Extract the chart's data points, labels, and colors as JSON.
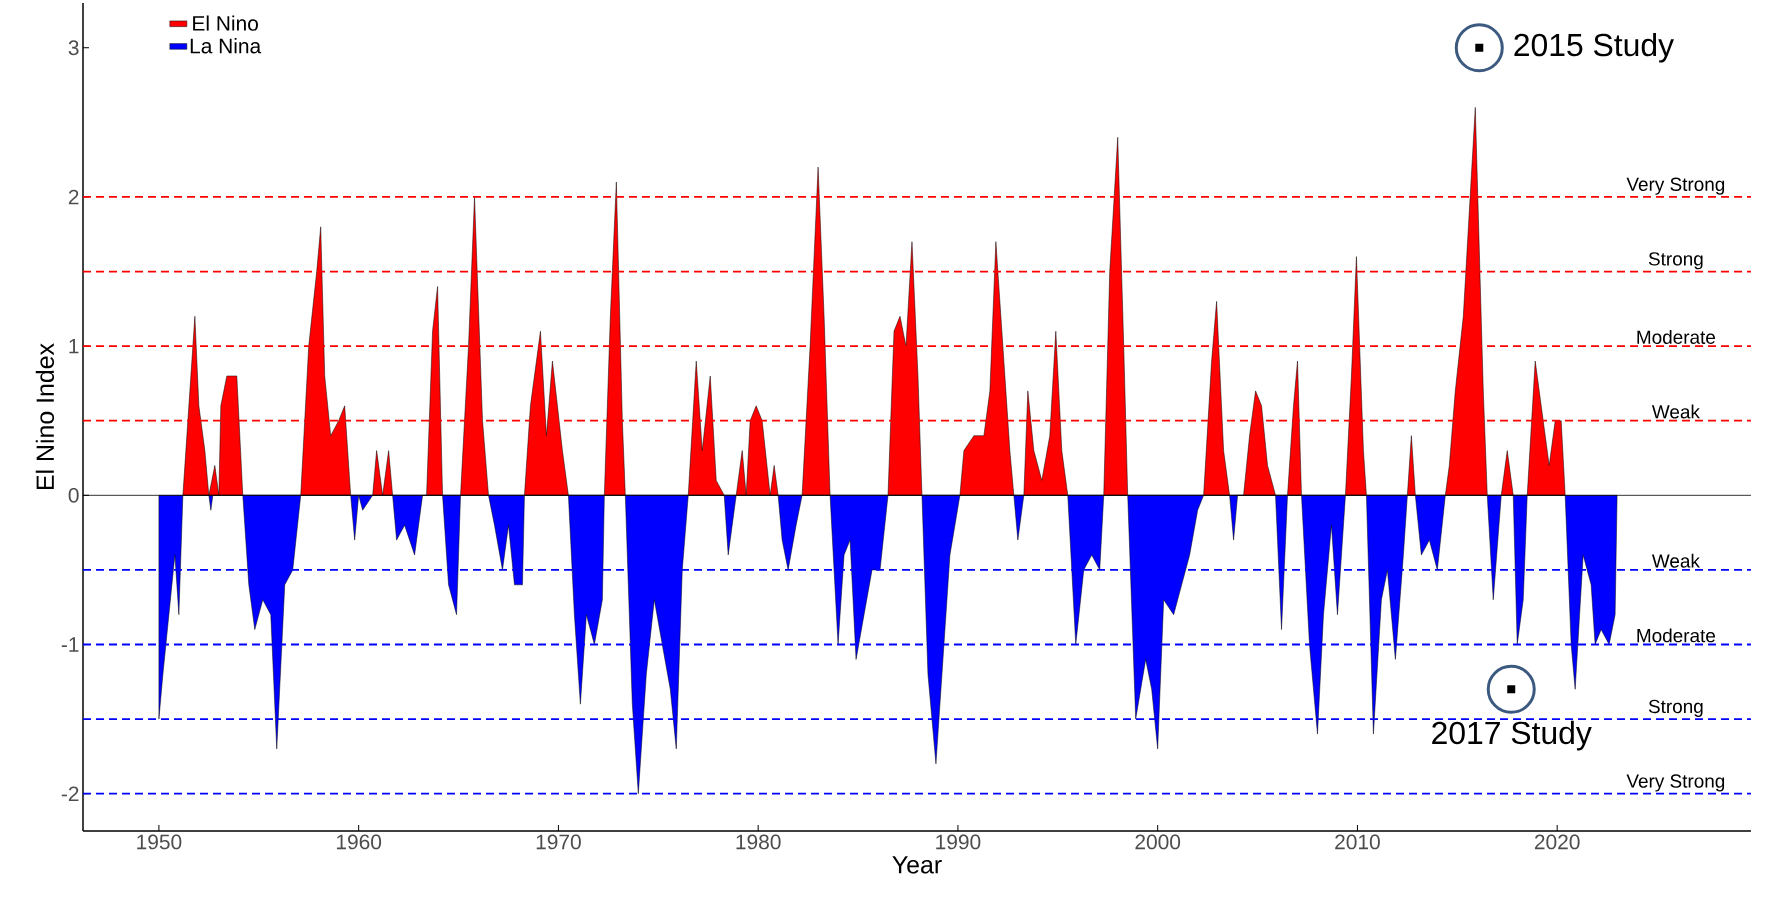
{
  "chart_data": {
    "type": "area",
    "xlabel": "Year",
    "ylabel": "El Nino Index",
    "xlim": [
      1946.2,
      2029.7
    ],
    "ylim": [
      -2.25,
      3.3
    ],
    "xticks": [
      1950,
      1960,
      1970,
      1980,
      1990,
      2000,
      2010,
      2020
    ],
    "yticks": [
      -2,
      -1,
      0,
      1,
      2,
      3
    ],
    "legend": "top left",
    "series": [
      {
        "name": "El Nino",
        "color": "#ff0000",
        "x": [
          1951.2,
          1951.6,
          1951.8,
          1952.0,
          1952.3,
          1952.5,
          1952.8,
          1953.0,
          1953.1,
          1953.4,
          1953.9,
          1954.2,
          1957.1,
          1957.5,
          1957.9,
          1958.1,
          1958.3,
          1958.6,
          1959.0,
          1959.3,
          1959.6,
          1960.7,
          1960.9,
          1961.2,
          1961.5,
          1961.7,
          1963.4,
          1963.7,
          1963.95,
          1964.2,
          1965.1,
          1965.5,
          1965.8,
          1966.2,
          1966.5,
          1968.3,
          1968.6,
          1969.1,
          1969.4,
          1969.7,
          1970.2,
          1970.5,
          1972.3,
          1972.6,
          1972.9,
          1973.2,
          1973.35,
          1976.5,
          1976.9,
          1977.2,
          1977.6,
          1977.9,
          1978.3,
          1978.9,
          1979.2,
          1979.4,
          1979.6,
          1979.9,
          1980.2,
          1980.6,
          1980.8,
          1981.0,
          1982.2,
          1982.6,
          1983.0,
          1983.3,
          1983.6,
          1986.5,
          1986.8,
          1987.1,
          1987.4,
          1987.7,
          1988.0,
          1988.2,
          1990.1,
          1990.3,
          1990.8,
          1991.3,
          1991.6,
          1991.9,
          1992.2,
          1992.6,
          1992.8,
          1993.3,
          1993.5,
          1993.8,
          1994.2,
          1994.6,
          1994.9,
          1995.2,
          1995.5,
          1997.3,
          1997.6,
          1998.0,
          1998.3,
          1998.5,
          2002.3,
          2002.7,
          2002.95,
          2003.3,
          2003.6,
          2004.3,
          2004.6,
          2004.9,
          2005.2,
          2005.5,
          2005.9,
          2006.5,
          2006.8,
          2007.0,
          2007.2,
          2009.4,
          2009.7,
          2009.95,
          2010.3,
          2010.45,
          2012.5,
          2012.7,
          2012.9,
          2014.4,
          2014.6,
          2014.9,
          2015.3,
          2015.9,
          2016.3,
          2016.5,
          2017.2,
          2017.5,
          2017.8,
          2018.5,
          2018.9,
          2019.3,
          2019.6,
          2019.9,
          2020.2,
          2020.4
        ],
        "values": [
          0,
          0.8,
          1.2,
          0.6,
          0.3,
          0,
          0.2,
          0,
          0.6,
          0.8,
          0.8,
          0,
          0,
          1.0,
          1.5,
          1.8,
          0.8,
          0.4,
          0.5,
          0.6,
          0,
          0,
          0.3,
          0,
          0.3,
          0,
          0,
          1.1,
          1.4,
          0,
          0,
          1.0,
          2.0,
          0.5,
          0,
          0,
          0.6,
          1.1,
          0.4,
          0.9,
          0.3,
          0,
          0,
          1.2,
          2.1,
          0.5,
          0,
          0,
          0.9,
          0.3,
          0.8,
          0.1,
          0,
          0,
          0.3,
          0,
          0.5,
          0.6,
          0.5,
          0,
          0.2,
          0,
          0,
          1.0,
          2.2,
          1.2,
          0,
          0,
          1.1,
          1.2,
          1.0,
          1.7,
          0.8,
          0,
          0,
          0.3,
          0.4,
          0.4,
          0.7,
          1.7,
          1.1,
          0.3,
          0,
          0,
          0.7,
          0.3,
          0.1,
          0.4,
          1.1,
          0.3,
          0,
          0,
          1.5,
          2.4,
          1.0,
          0,
          0,
          0.9,
          1.3,
          0.3,
          0,
          0,
          0.4,
          0.7,
          0.6,
          0.2,
          0,
          0,
          0.6,
          0.9,
          0,
          0,
          0.8,
          1.6,
          0.3,
          0,
          0,
          0.4,
          0,
          0,
          0.2,
          0.7,
          1.2,
          2.6,
          0.7,
          0,
          0,
          0.3,
          0,
          0,
          0.9,
          0.5,
          0.2,
          0.5,
          0.5,
          0
        ]
      },
      {
        "name": "La Nina",
        "color": "#0000ff",
        "x": [
          1950.0,
          1950.2,
          1950.5,
          1950.8,
          1951.0,
          1951.2,
          1952.5,
          1952.6,
          1952.7,
          1954.2,
          1954.5,
          1954.8,
          1955.2,
          1955.6,
          1955.9,
          1956.3,
          1956.7,
          1957.1,
          1959.6,
          1959.8,
          1960.0,
          1960.2,
          1960.7,
          1961.7,
          1961.9,
          1962.3,
          1962.8,
          1963.2,
          1964.2,
          1964.5,
          1964.9,
          1965.1,
          1966.5,
          1966.8,
          1967.2,
          1967.5,
          1967.8,
          1968.2,
          1968.3,
          1970.5,
          1970.8,
          1971.1,
          1971.4,
          1971.8,
          1972.2,
          1972.3,
          1973.35,
          1973.7,
          1974.0,
          1974.4,
          1974.8,
          1975.2,
          1975.6,
          1975.9,
          1976.2,
          1976.5,
          1978.3,
          1978.5,
          1978.9,
          1981.0,
          1981.2,
          1981.5,
          1981.9,
          1982.2,
          1983.6,
          1983.8,
          1984.0,
          1984.3,
          1984.6,
          1984.9,
          1985.3,
          1985.7,
          1986.1,
          1986.5,
          1988.2,
          1988.5,
          1988.9,
          1989.2,
          1989.6,
          1990.1,
          1992.8,
          1993.0,
          1993.3,
          1995.5,
          1995.9,
          1996.3,
          1996.7,
          1997.1,
          1997.3,
          1998.5,
          1998.9,
          1999.4,
          1999.7,
          2000.0,
          2000.3,
          2000.8,
          2001.2,
          2001.6,
          2002.0,
          2002.3,
          2003.6,
          2003.8,
          2004.0,
          2005.9,
          2006.2,
          2006.5,
          2007.2,
          2007.6,
          2008.0,
          2008.3,
          2008.7,
          2009.0,
          2009.4,
          2010.45,
          2010.8,
          2011.2,
          2011.5,
          2011.9,
          2012.3,
          2012.5,
          2012.9,
          2013.2,
          2013.6,
          2014.0,
          2014.4,
          2016.5,
          2016.8,
          2017.2,
          2017.8,
          2018.0,
          2018.3,
          2018.5,
          2020.4,
          2020.7,
          2020.9,
          2021.3,
          2021.7,
          2021.9,
          2022.2,
          2022.6,
          2022.9,
          2023.0
        ],
        "values": [
          -1.5,
          -1.2,
          -0.8,
          -0.4,
          -0.8,
          0,
          0,
          -0.1,
          0,
          0,
          -0.6,
          -0.9,
          -0.7,
          -0.8,
          -1.7,
          -0.6,
          -0.5,
          0,
          0,
          -0.3,
          0,
          -0.1,
          0,
          0,
          -0.3,
          -0.2,
          -0.4,
          0,
          0,
          -0.6,
          -0.8,
          0,
          0,
          -0.2,
          -0.5,
          -0.2,
          -0.6,
          -0.6,
          0,
          0,
          -0.8,
          -1.4,
          -0.8,
          -1.0,
          -0.7,
          0,
          0,
          -1.4,
          -2.0,
          -1.2,
          -0.7,
          -1.0,
          -1.3,
          -1.7,
          -0.5,
          0,
          0,
          -0.4,
          0,
          0,
          -0.3,
          -0.5,
          -0.2,
          0,
          0,
          -0.5,
          -1.0,
          -0.4,
          -0.3,
          -1.1,
          -0.8,
          -0.5,
          -0.5,
          0,
          0,
          -1.2,
          -1.8,
          -1.2,
          -0.4,
          0,
          0,
          -0.3,
          0,
          0,
          -1.0,
          -0.5,
          -0.4,
          -0.5,
          0,
          0,
          -1.5,
          -1.1,
          -1.3,
          -1.7,
          -0.7,
          -0.8,
          -0.6,
          -0.4,
          -0.1,
          0,
          0,
          -0.3,
          0,
          0,
          -0.9,
          0,
          0,
          -1.0,
          -1.6,
          -0.8,
          -0.2,
          -0.8,
          0,
          0,
          -1.6,
          -0.7,
          -0.5,
          -1.1,
          -0.4,
          0,
          0,
          -0.4,
          -0.3,
          -0.5,
          0,
          0,
          -0.7,
          0,
          0,
          -1.0,
          -0.7,
          0,
          0,
          -1.0,
          -1.3,
          -0.4,
          -0.6,
          -1.0,
          -0.9,
          -1.0,
          -0.8,
          0
        ]
      }
    ],
    "ref_lines": [
      {
        "axis": "y",
        "value": 0,
        "color": "#000000",
        "line_style": "solid"
      },
      {
        "axis": "y",
        "value": 2,
        "label": "Very Strong",
        "color": "#ff0000",
        "line_style": "dashed"
      },
      {
        "axis": "y",
        "value": 1.5,
        "label": "Strong",
        "color": "#ff0000",
        "line_style": "dashed"
      },
      {
        "axis": "y",
        "value": 1,
        "label": "Moderate",
        "color": "#ff0000",
        "line_style": "dashed"
      },
      {
        "axis": "y",
        "value": 0.5,
        "label": "Weak",
        "color": "#ff0000",
        "line_style": "dashed"
      },
      {
        "axis": "y",
        "value": -0.5,
        "label": "Weak",
        "color": "#0000ff",
        "line_style": "dashed"
      },
      {
        "axis": "y",
        "value": -1,
        "label": "Moderate",
        "color": "#0000ff",
        "line_style": "dashed"
      },
      {
        "axis": "y",
        "value": -1.5,
        "label": "Strong",
        "color": "#0000ff",
        "line_style": "dashed"
      },
      {
        "axis": "y",
        "value": -2,
        "label": "Very Strong",
        "color": "#0000ff",
        "line_style": "dashed"
      }
    ],
    "annotations": [
      {
        "text": "2015 Study",
        "x": 2016.1,
        "y": 3.0
      },
      {
        "text": "2017 Study",
        "x": 2017.7,
        "y": -1.3
      }
    ]
  }
}
